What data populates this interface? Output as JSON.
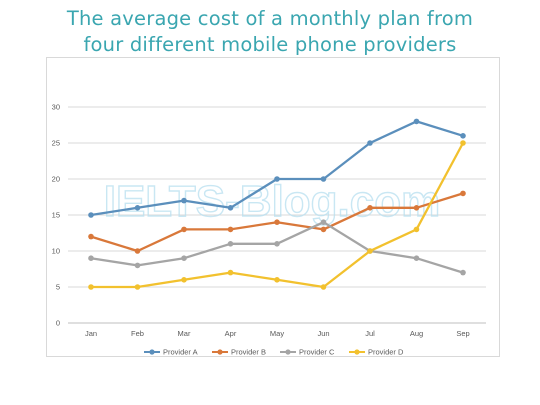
{
  "chart_data": {
    "type": "line",
    "title_line1": "The average cost of a monthly plan from",
    "title_line2": "four different mobile phone providers",
    "categories": [
      "Jan",
      "Feb",
      "Mar",
      "Apr",
      "May",
      "Jun",
      "Jul",
      "Aug",
      "Sep"
    ],
    "series": [
      {
        "name": "Provider A",
        "color": "#5b8fbc",
        "values": [
          15,
          16,
          17,
          16,
          20,
          20,
          25,
          28,
          26
        ]
      },
      {
        "name": "Provider B",
        "color": "#d9783a",
        "values": [
          12,
          10,
          13,
          13,
          14,
          13,
          16,
          16,
          18
        ]
      },
      {
        "name": "Provider C",
        "color": "#a5a5a5",
        "values": [
          9,
          8,
          9,
          11,
          11,
          14,
          10,
          9,
          7
        ]
      },
      {
        "name": "Provider D",
        "color": "#f2c12e",
        "values": [
          5,
          5,
          6,
          7,
          6,
          5,
          10,
          13,
          25
        ]
      }
    ],
    "y_ticks": [
      "0",
      "5",
      "10",
      "15",
      "20",
      "25",
      "30"
    ],
    "ylim": [
      0,
      30
    ],
    "grid": true,
    "legend_position": "bottom",
    "watermark": "IELTS-Blog.com"
  }
}
